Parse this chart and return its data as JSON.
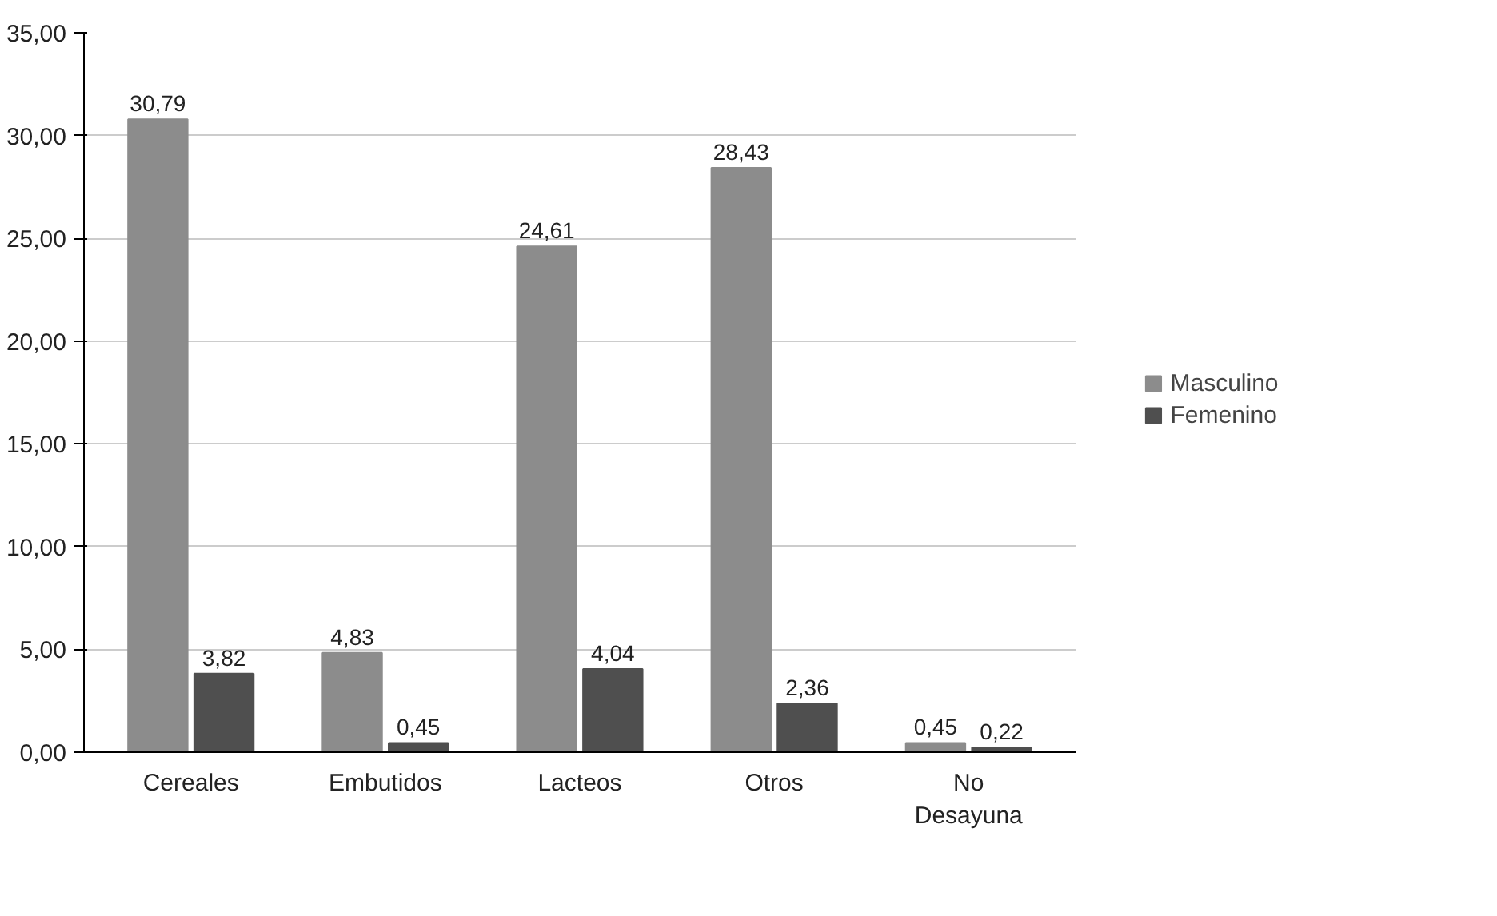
{
  "chart_data": {
    "type": "bar",
    "categories": [
      "Cereales",
      "Embutidos",
      "Lacteos",
      "Otros",
      "No\nDesayuna"
    ],
    "series": [
      {
        "name": "Masculino",
        "color": "#8c8c8c",
        "values": [
          30.79,
          4.83,
          24.61,
          28.43,
          0.45
        ],
        "value_labels": [
          "30,79",
          "4,83",
          "24,61",
          "28,43",
          "0,45"
        ]
      },
      {
        "name": "Femenino",
        "color": "#4f4f4f",
        "values": [
          3.82,
          0.45,
          4.04,
          2.36,
          0.22
        ],
        "value_labels": [
          "3,82",
          "0,45",
          "4,04",
          "2,36",
          "0,22"
        ]
      }
    ],
    "ylim": [
      0,
      35
    ],
    "yticks": [
      {
        "value": 0,
        "label": "0,00"
      },
      {
        "value": 5,
        "label": "5,00"
      },
      {
        "value": 10,
        "label": "10,00"
      },
      {
        "value": 15,
        "label": "15,00"
      },
      {
        "value": 20,
        "label": "20,00"
      },
      {
        "value": 25,
        "label": "25,00"
      },
      {
        "value": 30,
        "label": "30,00"
      },
      {
        "value": 35,
        "label": "35,00"
      }
    ],
    "grid": "y",
    "legend": "right",
    "data_labels": true
  }
}
